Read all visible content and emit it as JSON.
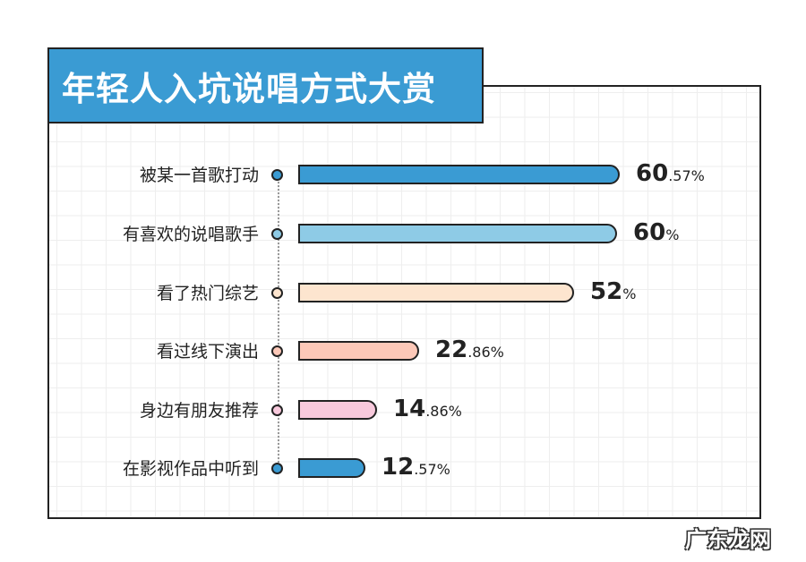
{
  "title": "年轻人入坑说唱方式大赏",
  "watermark": "广东龙网",
  "chart_data": {
    "type": "bar",
    "orientation": "horizontal",
    "title": "年轻人入坑说唱方式大赏",
    "categories": [
      "被某一首歌打动",
      "有喜欢的说唱歌手",
      "看了热门综艺",
      "看过线下演出",
      "身边有朋友推荐",
      "在影视作品中听到"
    ],
    "values": [
      60.57,
      60,
      52,
      22.86,
      14.86,
      12.57
    ],
    "value_labels": [
      {
        "int": "60",
        "dec": ".57%"
      },
      {
        "int": "60",
        "dec": "%"
      },
      {
        "int": "52",
        "dec": "%"
      },
      {
        "int": "22",
        "dec": ".86%"
      },
      {
        "int": "14",
        "dec": ".86%"
      },
      {
        "int": "12",
        "dec": ".57%"
      }
    ],
    "colors": [
      "#3a9bd3",
      "#8ecbe6",
      "#fde5cf",
      "#fcc8b8",
      "#f8c9dc",
      "#3a9bd3"
    ],
    "unit": "%",
    "grid": true,
    "xlabel": "",
    "ylabel": ""
  }
}
